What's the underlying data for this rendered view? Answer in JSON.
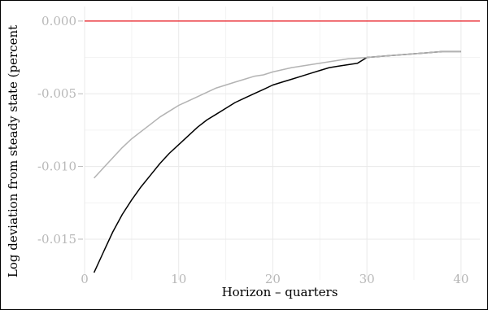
{
  "chart_data": {
    "type": "line",
    "title": "",
    "xlabel": "Horizon – quarters",
    "ylabel": "Log deviation from steady state (percent",
    "xlim": [
      0,
      42
    ],
    "ylim": [
      -0.0178,
      0.001
    ],
    "x_ticks": [
      {
        "value": 0,
        "label": "0"
      },
      {
        "value": 10,
        "label": "10"
      },
      {
        "value": 20,
        "label": "20"
      },
      {
        "value": 30,
        "label": "30"
      },
      {
        "value": 40,
        "label": "40"
      }
    ],
    "y_ticks": [
      {
        "value": 0,
        "label": "0.000"
      },
      {
        "value": -0.005,
        "label": "-0.005"
      },
      {
        "value": -0.01,
        "label": "-0.010"
      },
      {
        "value": -0.015,
        "label": "-0.015"
      }
    ],
    "grid": true,
    "reference_line": {
      "value": 0,
      "color": "#e8161c"
    },
    "series": [
      {
        "color": "#000000",
        "x": [
          1,
          2,
          3,
          4,
          5,
          6,
          7,
          8,
          9,
          10,
          11,
          12,
          13,
          14,
          15,
          16,
          17,
          18,
          19,
          20,
          21,
          22,
          23,
          24,
          25,
          26,
          27,
          28,
          29,
          30,
          32,
          34,
          36,
          38,
          40
        ],
        "values": [
          -0.0173,
          -0.0159,
          -0.0145,
          -0.0133,
          -0.0123,
          -0.0114,
          -0.0106,
          -0.0098,
          -0.0091,
          -0.0085,
          -0.0079,
          -0.0073,
          -0.0068,
          -0.0064,
          -0.006,
          -0.0056,
          -0.0053,
          -0.005,
          -0.0047,
          -0.0044,
          -0.0042,
          -0.004,
          -0.0038,
          -0.0036,
          -0.0034,
          -0.0032,
          -0.0031,
          -0.003,
          -0.0029,
          -0.0025,
          -0.0024,
          -0.0023,
          -0.0022,
          -0.0021,
          -0.0021
        ]
      },
      {
        "color": "#b3b3b3",
        "x": [
          1,
          2,
          3,
          4,
          5,
          6,
          7,
          8,
          9,
          10,
          11,
          12,
          13,
          14,
          15,
          16,
          17,
          18,
          19,
          20,
          22,
          24,
          26,
          28,
          30,
          32,
          34,
          36,
          38,
          40
        ],
        "values": [
          -0.0108,
          -0.0101,
          -0.0094,
          -0.0087,
          -0.0081,
          -0.0076,
          -0.0071,
          -0.0066,
          -0.0062,
          -0.0058,
          -0.0055,
          -0.0052,
          -0.0049,
          -0.0046,
          -0.0044,
          -0.0042,
          -0.004,
          -0.0038,
          -0.0037,
          -0.0035,
          -0.0032,
          -0.003,
          -0.0028,
          -0.0026,
          -0.0025,
          -0.0024,
          -0.0023,
          -0.0022,
          -0.0021,
          -0.0021
        ]
      }
    ]
  }
}
